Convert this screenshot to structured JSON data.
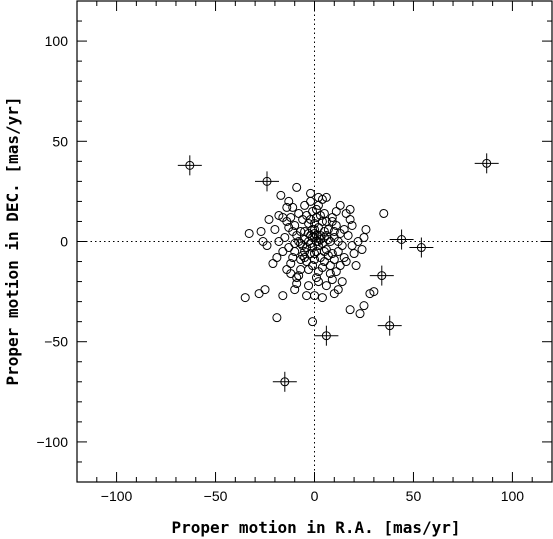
{
  "chart_data": {
    "type": "scatter",
    "title": "",
    "xlabel": "Proper motion in R.A. [mas/yr]",
    "ylabel": "Proper motion in DEC. [mas/yr]",
    "xlim": [
      -120,
      120
    ],
    "ylim": [
      -120,
      120
    ],
    "xticks": [
      -100,
      -50,
      0,
      50,
      100
    ],
    "yticks": [
      -100,
      -50,
      0,
      50,
      100
    ],
    "xtick_labels": [
      "−100",
      "−50",
      "0",
      "50",
      "100"
    ],
    "ytick_labels": [
      "−100",
      "−50",
      "0",
      "50",
      "100"
    ],
    "minor_tick_step": 10,
    "reference_lines": {
      "x": 0,
      "y": 0,
      "style": "dotted"
    },
    "grid": false,
    "legend": "none",
    "series": [
      {
        "marker": "open-circle-with-errorbars",
        "points": [
          [
            -63,
            38
          ],
          [
            -24,
            30
          ],
          [
            87,
            39
          ],
          [
            44,
            1
          ],
          [
            54,
            -3
          ],
          [
            34,
            -17
          ],
          [
            38,
            -42
          ],
          [
            6,
            -47
          ],
          [
            -15,
            -70
          ]
        ]
      },
      {
        "marker": "open-circle",
        "points": [
          [
            -35,
            -28
          ],
          [
            -28,
            -26
          ],
          [
            -25,
            -24
          ],
          [
            -16,
            -27
          ],
          [
            -19,
            -38
          ],
          [
            -33,
            4
          ],
          [
            -27,
            5
          ],
          [
            -23,
            11
          ],
          [
            -17,
            23
          ],
          [
            -14,
            17
          ],
          [
            -9,
            27
          ],
          [
            -2,
            24
          ],
          [
            4,
            21
          ],
          [
            6,
            22
          ],
          [
            9,
            12
          ],
          [
            16,
            14
          ],
          [
            18,
            16
          ],
          [
            35,
            14
          ],
          [
            25,
            2
          ],
          [
            28,
            -26
          ],
          [
            25,
            -32
          ],
          [
            23,
            -36
          ],
          [
            18,
            -34
          ],
          [
            -4,
            -27
          ],
          [
            0,
            -27
          ],
          [
            4,
            -28
          ],
          [
            -1,
            -40
          ],
          [
            12,
            -24
          ],
          [
            30,
            -25
          ],
          [
            -1,
            15
          ],
          [
            2,
            18
          ],
          [
            5,
            14
          ],
          [
            -12,
            12
          ],
          [
            -8,
            14
          ],
          [
            -5,
            18
          ],
          [
            10,
            5
          ],
          [
            12,
            0
          ],
          [
            14,
            -2
          ],
          [
            -12,
            -16
          ],
          [
            -9,
            -18
          ],
          [
            -7,
            -14
          ],
          [
            8,
            -12
          ],
          [
            11,
            -15
          ],
          [
            14,
            -20
          ],
          [
            -3,
            -22
          ],
          [
            2,
            -20
          ],
          [
            6,
            -22
          ],
          [
            -15,
            2
          ],
          [
            -13,
            -3
          ],
          [
            -11,
            -8
          ],
          [
            -10,
            8
          ],
          [
            17,
            3
          ],
          [
            15,
            -8
          ],
          [
            19,
            -2
          ],
          [
            -18,
            0
          ],
          [
            -16,
            -5
          ],
          [
            1,
            0
          ],
          [
            -1,
            2
          ],
          [
            2,
            -2
          ],
          [
            -2,
            -1
          ],
          [
            0,
            4
          ],
          [
            3,
            3
          ],
          [
            -3,
            4
          ],
          [
            4,
            -1
          ],
          [
            -4,
            -3
          ],
          [
            1,
            -5
          ],
          [
            -1,
            6
          ],
          [
            5,
            2
          ],
          [
            -5,
            1
          ],
          [
            2,
            7
          ],
          [
            -2,
            -6
          ],
          [
            6,
            -4
          ],
          [
            -6,
            -2
          ],
          [
            3,
            -8
          ],
          [
            -3,
            9
          ],
          [
            7,
            6
          ],
          [
            -7,
            5
          ],
          [
            0,
            -9
          ],
          [
            8,
            0
          ],
          [
            -8,
            0
          ],
          [
            4,
            10
          ],
          [
            -4,
            -10
          ],
          [
            9,
            -6
          ],
          [
            -9,
            3
          ],
          [
            1,
            12
          ],
          [
            -1,
            -12
          ],
          [
            10,
            -9
          ],
          [
            -10,
            -5
          ],
          [
            6,
            10
          ],
          [
            -6,
            11
          ],
          [
            11,
            8
          ],
          [
            -11,
            5
          ],
          [
            0,
            9
          ],
          [
            5,
            -10
          ],
          [
            -5,
            -8
          ],
          [
            7,
            -7
          ],
          [
            -7,
            -9
          ],
          [
            3,
            13
          ],
          [
            -3,
            -14
          ],
          [
            12,
            -5
          ],
          [
            -12,
            -11
          ],
          [
            13,
            4
          ],
          [
            -13,
            7
          ],
          [
            2,
            -15
          ],
          [
            8,
            -16
          ],
          [
            -8,
            -17
          ],
          [
            15,
            6
          ],
          [
            -14,
            10
          ],
          [
            1,
            16
          ],
          [
            9,
            10
          ],
          [
            -2,
            11
          ],
          [
            4,
            -13
          ],
          [
            -4,
            13
          ],
          [
            6,
            3
          ],
          [
            -6,
            -7
          ],
          [
            10,
            2
          ],
          [
            -10,
            -1
          ],
          [
            3,
            1
          ],
          [
            -1,
            -3
          ],
          [
            0,
            2
          ],
          [
            2,
            0
          ],
          [
            -2,
            3
          ],
          [
            1,
            3
          ],
          [
            -3,
            0
          ],
          [
            5,
            5
          ],
          [
            -5,
            5
          ],
          [
            5,
            -5
          ],
          [
            -5,
            -5
          ],
          [
            7,
            1
          ],
          [
            -7,
            -1
          ],
          [
            0,
            -6
          ],
          [
            0,
            6
          ],
          [
            13,
            -12
          ],
          [
            -14,
            -14
          ],
          [
            16,
            -10
          ],
          [
            -16,
            12
          ],
          [
            19,
            8
          ],
          [
            20,
            -6
          ],
          [
            -19,
            -8
          ],
          [
            -20,
            6
          ],
          [
            22,
            0
          ],
          [
            21,
            -12
          ],
          [
            -21,
            -11
          ],
          [
            11,
            15
          ],
          [
            -11,
            17
          ],
          [
            -9,
            -21
          ],
          [
            9,
            -19
          ],
          [
            1,
            -18
          ],
          [
            18,
            11
          ],
          [
            -18,
            13
          ],
          [
            24,
            -4
          ],
          [
            -24,
            -2
          ],
          [
            2,
            22
          ],
          [
            -2,
            20
          ],
          [
            10,
            -26
          ],
          [
            -10,
            -24
          ],
          [
            13,
            18
          ],
          [
            -13,
            20
          ],
          [
            26,
            6
          ],
          [
            -26,
            0
          ]
        ]
      }
    ]
  }
}
